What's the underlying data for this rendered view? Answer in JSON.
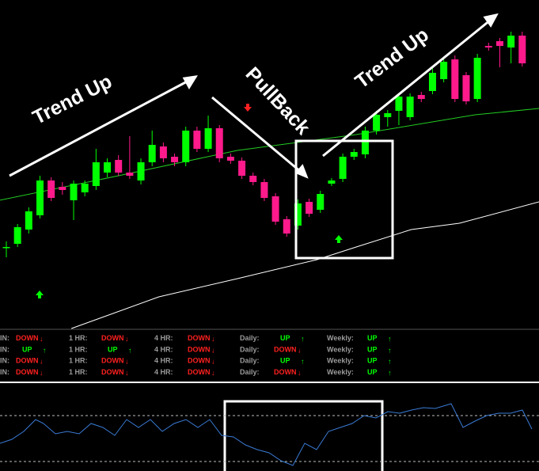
{
  "annotations": [
    "Trend Up",
    "PullBack",
    "Trend Up"
  ],
  "chart_data": {
    "type": "candlestick",
    "up_color": "#00ff00",
    "down_color": "#ff1a8c",
    "ylim": [
      0,
      415
    ],
    "open": [
      103,
      107,
      125,
      143,
      187,
      179,
      162,
      172,
      180,
      197,
      213,
      197,
      187,
      210,
      230,
      217,
      210,
      250,
      227,
      253,
      217,
      212,
      193,
      185,
      167,
      138,
      130,
      160,
      150,
      183,
      189,
      217,
      220,
      250,
      267,
      275,
      267,
      295,
      300,
      315,
      340,
      320,
      290,
      357,
      363,
      355,
      370
    ],
    "high": [
      110,
      132,
      153,
      193,
      191,
      185,
      187,
      187,
      227,
      215,
      219,
      243,
      215,
      250,
      235,
      221,
      255,
      255,
      269,
      257,
      221,
      216,
      197,
      189,
      171,
      142,
      163,
      164,
      174,
      190,
      221,
      227,
      255,
      275,
      276,
      297,
      297,
      299,
      330,
      343,
      345,
      324,
      347,
      361,
      367,
      375,
      375
    ],
    "low": [
      90,
      103,
      120,
      139,
      161,
      169,
      137,
      167,
      175,
      191,
      193,
      189,
      182,
      205,
      210,
      205,
      205,
      223,
      223,
      210,
      208,
      189,
      181,
      161,
      131,
      116,
      125,
      141,
      146,
      180,
      185,
      213,
      215,
      245,
      255,
      257,
      263,
      286,
      296,
      311,
      286,
      283,
      286,
      351,
      330,
      335,
      331
    ],
    "close": [
      103,
      128,
      148,
      187,
      165,
      175,
      183,
      183,
      210,
      210,
      197,
      193,
      210,
      232,
      215,
      210,
      250,
      227,
      253,
      215,
      212,
      193,
      185,
      165,
      135,
      120,
      158,
      145,
      170,
      187,
      217,
      223,
      250,
      270,
      272,
      293,
      293,
      290,
      323,
      337,
      290,
      287,
      342,
      355,
      357,
      370,
      335
    ],
    "lines": [
      {
        "color": "#22cc22",
        "x": [
          -0.6,
          10,
          20.6,
          31.2,
          41.8,
          47.5
        ],
        "values": [
          162,
          193,
          225,
          245,
          270,
          278
        ]
      },
      {
        "color": "#ffffff",
        "x": [
          5.8,
          13.6,
          20.6,
          27.7,
          31.2,
          36.1,
          40.4,
          47.5
        ],
        "values": [
          0,
          40,
          63,
          87,
          103,
          125,
          133,
          160
        ]
      }
    ]
  },
  "table": {
    "rows": [
      [
        {
          "label": "IN:",
          "value": "DOWN",
          "arrow": "↓"
        },
        {
          "label": "1 HR:",
          "value": "DOWN",
          "arrow": "↓"
        },
        {
          "label": "4 HR:",
          "value": "DOWN",
          "arrow": "↓"
        },
        {
          "label": "Daily:",
          "value": "UP",
          "arrow": "↑"
        },
        {
          "label": "Weekly:",
          "value": "UP",
          "arrow": "↑"
        }
      ],
      [
        {
          "label": "IN:",
          "value": "UP",
          "arrow": "↑"
        },
        {
          "label": "1 HR:",
          "value": "UP",
          "arrow": "↑"
        },
        {
          "label": "4 HR:",
          "value": "DOWN",
          "arrow": "↓"
        },
        {
          "label": "Daily:",
          "value": "DOWN",
          "arrow": "↓"
        },
        {
          "label": "Weekly:",
          "value": "UP",
          "arrow": "↑"
        }
      ],
      [
        {
          "label": "IN:",
          "value": "DOWN",
          "arrow": "↓"
        },
        {
          "label": "1 HR:",
          "value": "DOWN",
          "arrow": "↓"
        },
        {
          "label": "4 HR:",
          "value": "DOWN",
          "arrow": "↓"
        },
        {
          "label": "Daily:",
          "value": "UP",
          "arrow": "↑"
        },
        {
          "label": "Weekly:",
          "value": "UP",
          "arrow": "↑"
        }
      ],
      [
        {
          "label": "IN:",
          "value": "DOWN",
          "arrow": "↓"
        },
        {
          "label": "1 HR:",
          "value": "DOWN",
          "arrow": "↓"
        },
        {
          "label": "4 HR:",
          "value": "DOWN",
          "arrow": "↓"
        },
        {
          "label": "Daily:",
          "value": "DOWN",
          "arrow": "↓"
        },
        {
          "label": "Weekly:",
          "value": "UP",
          "arrow": "↑"
        }
      ]
    ],
    "up_color": "#00ff00",
    "down_color": "#ff2020"
  },
  "oscillator": {
    "type": "line",
    "color": "#3a7bd5",
    "ylim": [
      0,
      110
    ],
    "levels": [
      70,
      12
    ],
    "x": [
      0,
      15,
      30,
      45,
      55,
      70,
      85,
      100,
      115,
      130,
      145,
      160,
      175,
      190,
      205,
      220,
      235,
      250,
      265,
      280,
      295,
      310,
      325,
      340,
      355,
      370,
      385,
      400,
      415,
      430,
      445,
      460,
      475,
      490,
      505,
      520,
      535,
      550,
      570,
      585,
      600,
      615,
      630,
      645,
      660,
      672
    ],
    "values": [
      35,
      40,
      50,
      65,
      60,
      47,
      50,
      47,
      60,
      55,
      45,
      65,
      55,
      65,
      50,
      60,
      65,
      55,
      65,
      45,
      43,
      33,
      27,
      23,
      13,
      7,
      35,
      27,
      50,
      55,
      60,
      70,
      67,
      75,
      73,
      77,
      80,
      79,
      85,
      55,
      63,
      70,
      73,
      73,
      77,
      53
    ]
  }
}
